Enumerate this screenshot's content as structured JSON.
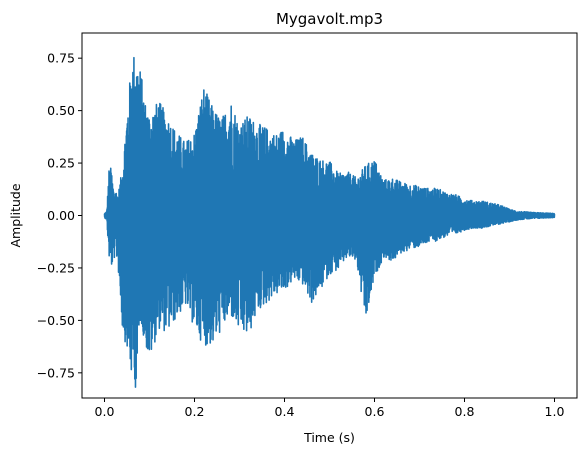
{
  "chart_data": {
    "type": "line",
    "title": "Mygavolt.mp3",
    "xlabel": "Time (s)",
    "ylabel": "Amplitude",
    "xlim": [
      -0.05,
      1.05
    ],
    "ylim": [
      -0.87,
      0.87
    ],
    "xticks": [
      0.0,
      0.2,
      0.4,
      0.6,
      0.8,
      1.0
    ],
    "xtick_labels": [
      "0.0",
      "0.2",
      "0.4",
      "0.6",
      "0.8",
      "1.0"
    ],
    "yticks": [
      -0.75,
      -0.5,
      -0.25,
      0.0,
      0.25,
      0.5,
      0.75
    ],
    "ytick_labels": [
      "−0.75",
      "−0.50",
      "−0.25",
      "0.00",
      "0.25",
      "0.50",
      "0.75"
    ],
    "grid": false,
    "series": [
      {
        "color": "#1f77b4",
        "x_range": [
          0.0,
          1.0
        ],
        "envelope_upper": [
          [
            0.0,
            0.01
          ],
          [
            0.005,
            0.02
          ],
          [
            0.01,
            0.22
          ],
          [
            0.015,
            0.23
          ],
          [
            0.02,
            0.13
          ],
          [
            0.025,
            0.12
          ],
          [
            0.03,
            0.1
          ],
          [
            0.04,
            0.23
          ],
          [
            0.05,
            0.5
          ],
          [
            0.055,
            0.61
          ],
          [
            0.06,
            0.74
          ],
          [
            0.065,
            0.78
          ],
          [
            0.07,
            0.77
          ],
          [
            0.08,
            0.7
          ],
          [
            0.09,
            0.55
          ],
          [
            0.1,
            0.49
          ],
          [
            0.12,
            0.55
          ],
          [
            0.14,
            0.48
          ],
          [
            0.16,
            0.4
          ],
          [
            0.18,
            0.35
          ],
          [
            0.2,
            0.4
          ],
          [
            0.22,
            0.62
          ],
          [
            0.24,
            0.52
          ],
          [
            0.26,
            0.46
          ],
          [
            0.28,
            0.56
          ],
          [
            0.3,
            0.44
          ],
          [
            0.32,
            0.48
          ],
          [
            0.34,
            0.44
          ],
          [
            0.36,
            0.42
          ],
          [
            0.38,
            0.39
          ],
          [
            0.4,
            0.42
          ],
          [
            0.42,
            0.36
          ],
          [
            0.44,
            0.38
          ],
          [
            0.46,
            0.3
          ],
          [
            0.48,
            0.27
          ],
          [
            0.5,
            0.26
          ],
          [
            0.52,
            0.2
          ],
          [
            0.54,
            0.21
          ],
          [
            0.56,
            0.18
          ],
          [
            0.58,
            0.24
          ],
          [
            0.6,
            0.27
          ],
          [
            0.62,
            0.17
          ],
          [
            0.64,
            0.18
          ],
          [
            0.66,
            0.16
          ],
          [
            0.68,
            0.15
          ],
          [
            0.7,
            0.14
          ],
          [
            0.72,
            0.13
          ],
          [
            0.74,
            0.13
          ],
          [
            0.76,
            0.11
          ],
          [
            0.78,
            0.1
          ],
          [
            0.8,
            0.08
          ],
          [
            0.82,
            0.07
          ],
          [
            0.84,
            0.07
          ],
          [
            0.86,
            0.06
          ],
          [
            0.88,
            0.05
          ],
          [
            0.9,
            0.03
          ],
          [
            0.92,
            0.02
          ],
          [
            0.95,
            0.015
          ],
          [
            1.0,
            0.01
          ]
        ],
        "envelope_lower": [
          [
            0.0,
            -0.01
          ],
          [
            0.005,
            -0.02
          ],
          [
            0.01,
            -0.2
          ],
          [
            0.015,
            -0.25
          ],
          [
            0.02,
            -0.22
          ],
          [
            0.025,
            -0.18
          ],
          [
            0.03,
            -0.24
          ],
          [
            0.04,
            -0.55
          ],
          [
            0.05,
            -0.64
          ],
          [
            0.06,
            -0.78
          ],
          [
            0.065,
            -0.72
          ],
          [
            0.07,
            -0.86
          ],
          [
            0.075,
            -0.7
          ],
          [
            0.08,
            -0.5
          ],
          [
            0.09,
            -0.61
          ],
          [
            0.1,
            -0.7
          ],
          [
            0.12,
            -0.54
          ],
          [
            0.14,
            -0.56
          ],
          [
            0.16,
            -0.49
          ],
          [
            0.18,
            -0.43
          ],
          [
            0.2,
            -0.54
          ],
          [
            0.22,
            -0.62
          ],
          [
            0.24,
            -0.62
          ],
          [
            0.26,
            -0.55
          ],
          [
            0.28,
            -0.48
          ],
          [
            0.3,
            -0.56
          ],
          [
            0.32,
            -0.58
          ],
          [
            0.34,
            -0.46
          ],
          [
            0.36,
            -0.42
          ],
          [
            0.38,
            -0.38
          ],
          [
            0.4,
            -0.36
          ],
          [
            0.42,
            -0.31
          ],
          [
            0.44,
            -0.33
          ],
          [
            0.46,
            -0.42
          ],
          [
            0.48,
            -0.36
          ],
          [
            0.5,
            -0.28
          ],
          [
            0.52,
            -0.26
          ],
          [
            0.54,
            -0.2
          ],
          [
            0.56,
            -0.22
          ],
          [
            0.58,
            -0.52
          ],
          [
            0.6,
            -0.3
          ],
          [
            0.62,
            -0.2
          ],
          [
            0.64,
            -0.22
          ],
          [
            0.66,
            -0.18
          ],
          [
            0.68,
            -0.16
          ],
          [
            0.7,
            -0.15
          ],
          [
            0.72,
            -0.13
          ],
          [
            0.74,
            -0.12
          ],
          [
            0.76,
            -0.1
          ],
          [
            0.78,
            -0.09
          ],
          [
            0.8,
            -0.07
          ],
          [
            0.82,
            -0.06
          ],
          [
            0.84,
            -0.06
          ],
          [
            0.86,
            -0.05
          ],
          [
            0.88,
            -0.04
          ],
          [
            0.9,
            -0.03
          ],
          [
            0.92,
            -0.02
          ],
          [
            0.95,
            -0.015
          ],
          [
            1.0,
            -0.01
          ]
        ]
      }
    ]
  }
}
